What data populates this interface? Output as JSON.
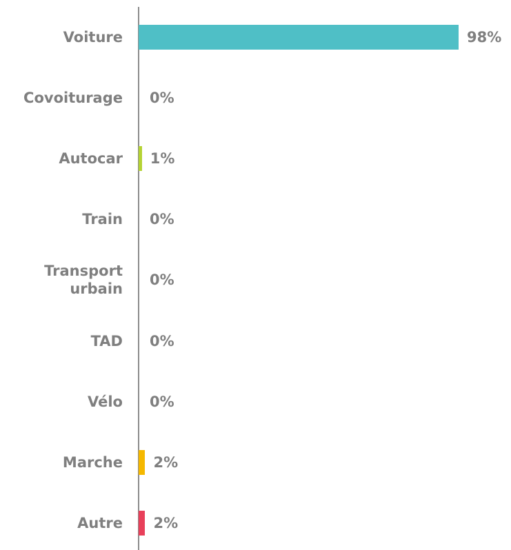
{
  "chart_data": {
    "type": "bar",
    "orientation": "horizontal",
    "categories": [
      "Voiture",
      "Covoiturage",
      "Autocar",
      "Train",
      "Transport urbain",
      "TAD",
      "Vélo",
      "Marche",
      "Autre"
    ],
    "values": [
      98,
      0,
      1,
      0,
      0,
      0,
      0,
      2,
      2
    ],
    "value_labels": [
      "98%",
      "0%",
      "1%",
      "0%",
      "0%",
      "0%",
      "0%",
      "2%",
      "2%"
    ],
    "colors": [
      "#4fbfc6",
      "#4fbfc6",
      "#b5d334",
      "#4fbfc6",
      "#4fbfc6",
      "#4fbfc6",
      "#4fbfc6",
      "#f5b800",
      "#e8405a"
    ]
  }
}
